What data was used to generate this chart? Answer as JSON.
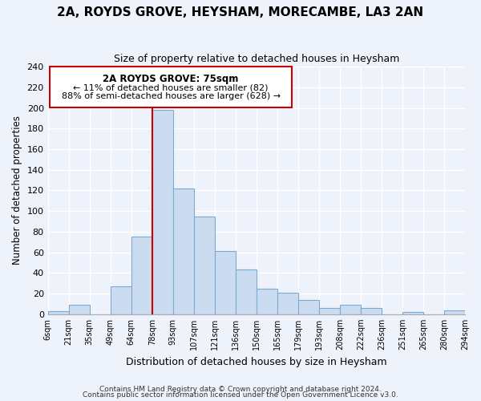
{
  "title": "2A, ROYDS GROVE, HEYSHAM, MORECAMBE, LA3 2AN",
  "subtitle": "Size of property relative to detached houses in Heysham",
  "xlabel": "Distribution of detached houses by size in Heysham",
  "ylabel": "Number of detached properties",
  "footer1": "Contains HM Land Registry data © Crown copyright and database right 2024.",
  "footer2": "Contains public sector information licensed under the Open Government Licence v3.0.",
  "bar_color": "#ccdcf0",
  "bar_edge_color": "#7aaad0",
  "annotation_box_color": "#ffffff",
  "annotation_border_color": "#cc0000",
  "vline_color": "#cc0000",
  "categories": [
    "6sqm",
    "21sqm",
    "35sqm",
    "49sqm",
    "64sqm",
    "78sqm",
    "93sqm",
    "107sqm",
    "121sqm",
    "136sqm",
    "150sqm",
    "165sqm",
    "179sqm",
    "193sqm",
    "208sqm",
    "222sqm",
    "236sqm",
    "251sqm",
    "265sqm",
    "280sqm",
    "294sqm"
  ],
  "values": [
    3,
    9,
    0,
    27,
    75,
    198,
    122,
    95,
    61,
    43,
    25,
    21,
    14,
    6,
    9,
    6,
    0,
    2,
    0,
    4,
    0
  ],
  "ylim": [
    0,
    240
  ],
  "yticks": [
    0,
    20,
    40,
    60,
    80,
    100,
    120,
    140,
    160,
    180,
    200,
    220,
    240
  ],
  "vline_x_index": 5,
  "annotation_text_line1": "2A ROYDS GROVE: 75sqm",
  "annotation_text_line2": "← 11% of detached houses are smaller (82)",
  "annotation_text_line3": "88% of semi-detached houses are larger (628) →",
  "background_color": "#eef2fb"
}
